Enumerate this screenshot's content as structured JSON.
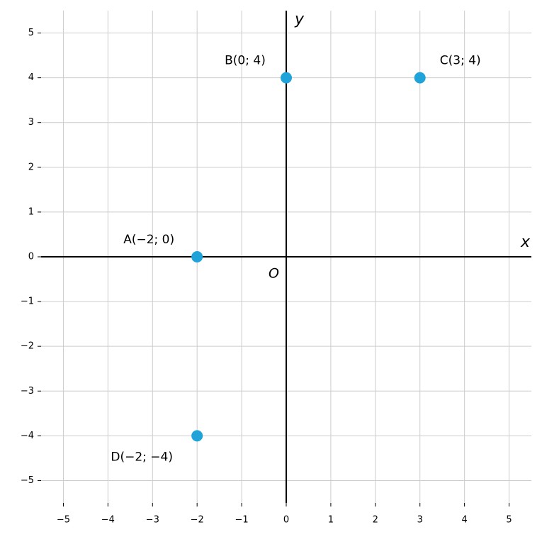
{
  "chart_data": {
    "type": "scatter",
    "x": [
      -2,
      0,
      3,
      -2
    ],
    "values": [
      0,
      4,
      4,
      -4
    ],
    "point_labels": [
      "A(−2; 0)",
      "B(0; 4)",
      "C(3; 4)",
      "D(−2; −4)"
    ],
    "color": "#1fa3d9",
    "x_label": "x",
    "y_label": "y",
    "origin_label": "O",
    "xlim": [
      -5.5,
      5.5
    ],
    "ylim": [
      -5.5,
      5.5
    ],
    "xticks": [
      {
        "value": -5,
        "label": "−5"
      },
      {
        "value": -4,
        "label": "−4"
      },
      {
        "value": -3,
        "label": "−3"
      },
      {
        "value": -2,
        "label": "−2"
      },
      {
        "value": -1,
        "label": "−1"
      },
      0,
      1,
      2,
      3,
      4,
      5
    ],
    "yticks": [
      {
        "value": -5,
        "label": "−5"
      },
      {
        "value": -4,
        "label": "−4"
      },
      {
        "value": -3,
        "label": "−3"
      },
      {
        "value": -2,
        "label": "−2"
      },
      {
        "value": -1,
        "label": "−1"
      },
      0,
      1,
      2,
      3,
      4,
      5
    ],
    "grid": true
  }
}
